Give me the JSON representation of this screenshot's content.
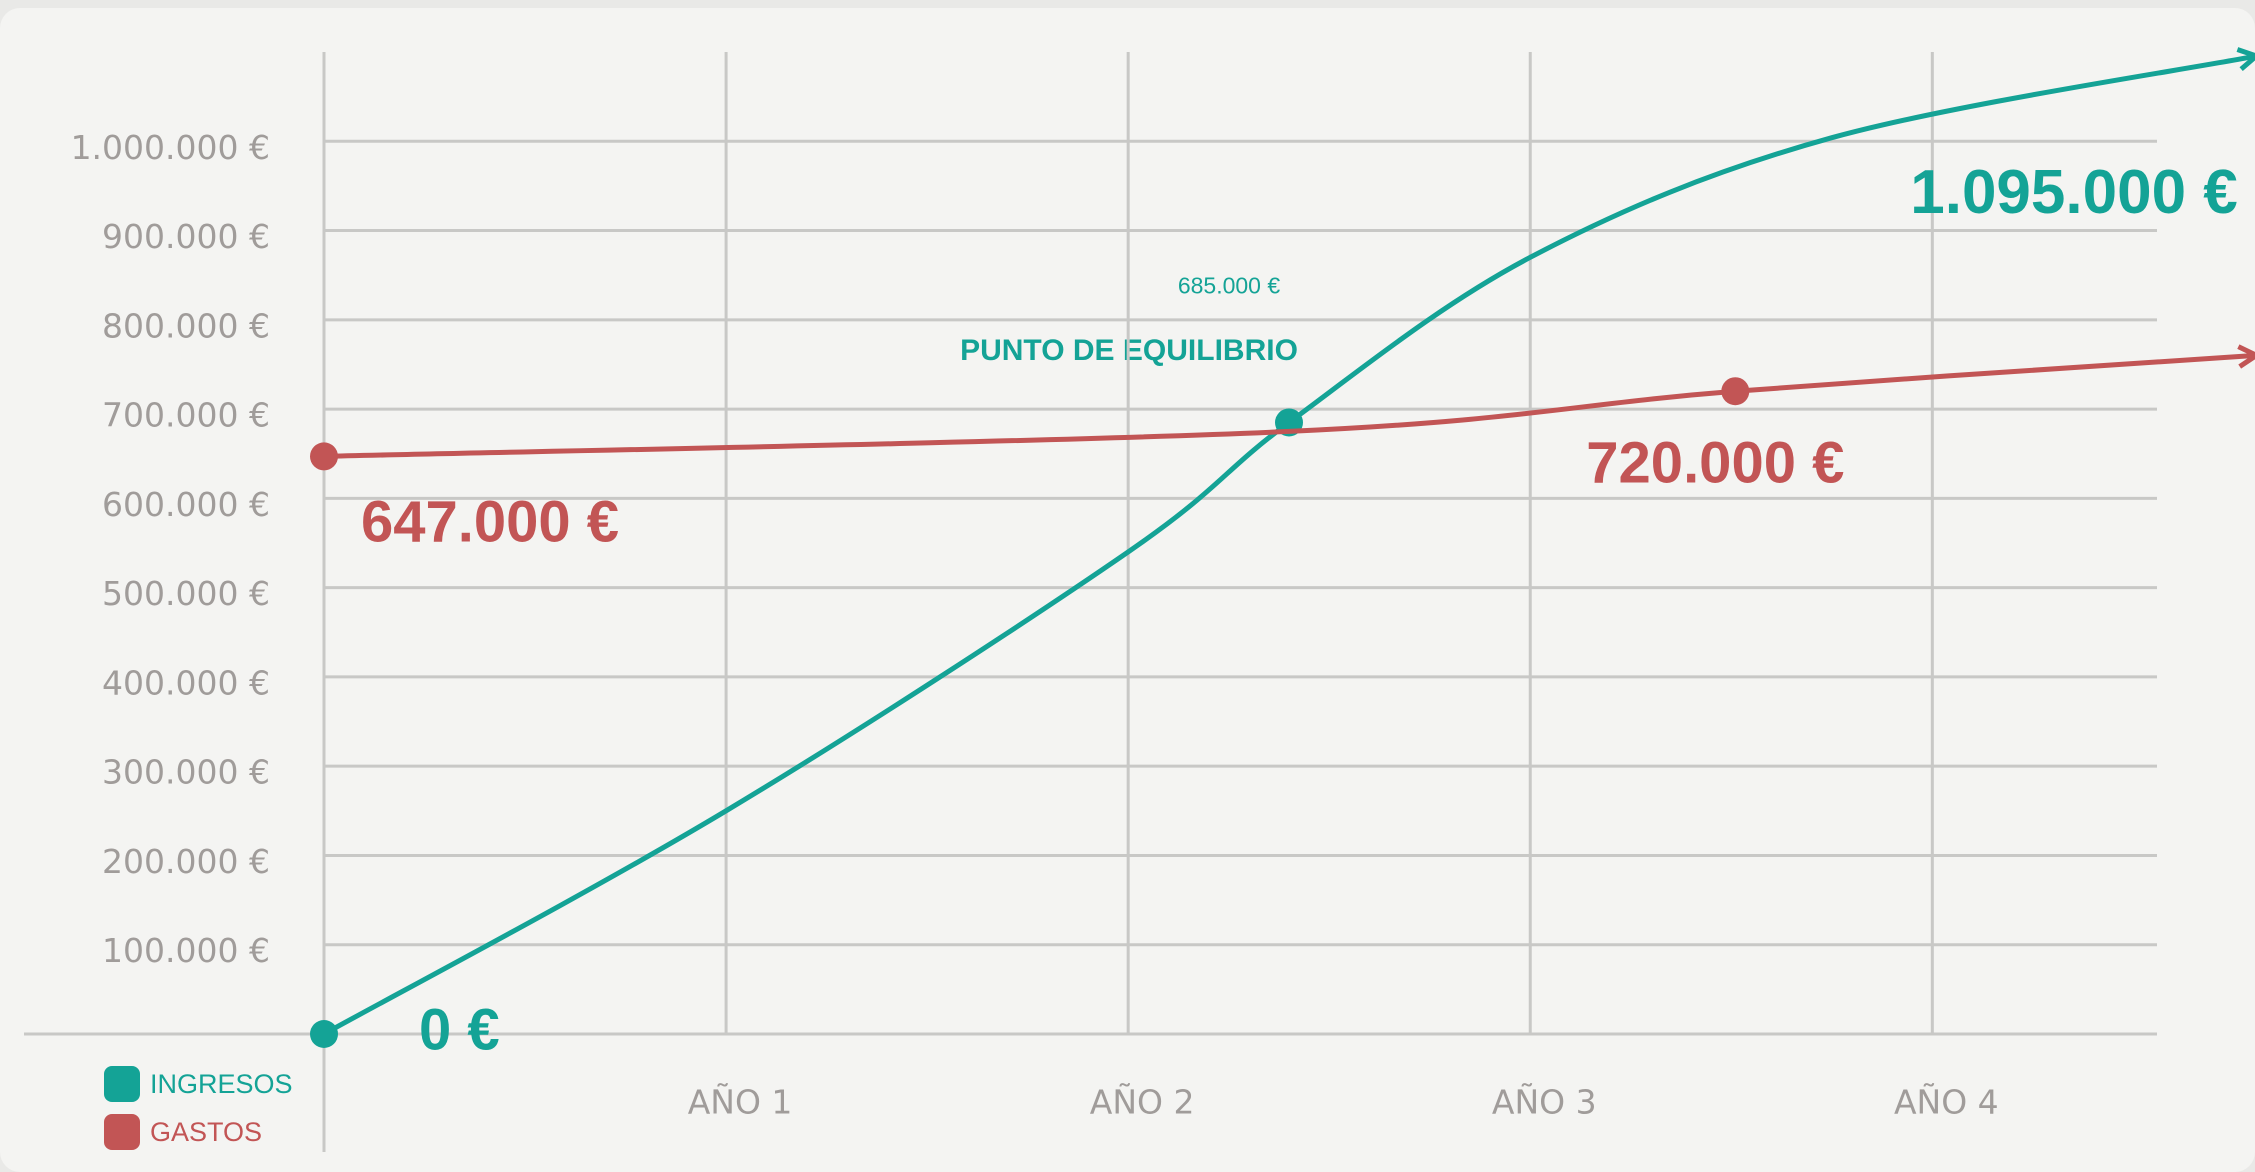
{
  "chart_data": {
    "type": "line",
    "annotations": [
      "PUNTO DE EQUILIBRIO"
    ],
    "xlim": [
      0,
      4.8
    ],
    "xticks": [
      {
        "value": 1,
        "label": "AÑO 1"
      },
      {
        "value": 2,
        "label": "AÑO 2"
      },
      {
        "value": 3,
        "label": "AÑO 3"
      },
      {
        "value": 4,
        "label": "AÑO 4"
      }
    ],
    "ylim": [
      0,
      1100000
    ],
    "yticks": [
      {
        "value": 100000,
        "label": "100.000 €"
      },
      {
        "value": 200000,
        "label": "200.000 €"
      },
      {
        "value": 300000,
        "label": "300.000 €"
      },
      {
        "value": 400000,
        "label": "400.000 €"
      },
      {
        "value": 500000,
        "label": "500.000 €"
      },
      {
        "value": 600000,
        "label": "600.000 €"
      },
      {
        "value": 700000,
        "label": "700.000 €"
      },
      {
        "value": 800000,
        "label": "800.000 €"
      },
      {
        "value": 900000,
        "label": "900.000 €"
      },
      {
        "value": 1000000,
        "label": "1.000.000 €"
      }
    ],
    "grid": true,
    "legend": "bottom-left",
    "series": [
      {
        "name": "INGRESOS",
        "color": "#14a396",
        "x": [
          0,
          1,
          2,
          2.4,
          3,
          3.75,
          4.8
        ],
        "values": [
          0,
          250000,
          540000,
          685000,
          870000,
          1004000,
          1095000
        ],
        "value_labels": [
          "0 €",
          null,
          null,
          "685.000 €",
          null,
          null,
          "1.095.000 €"
        ]
      },
      {
        "name": "GASTOS",
        "color": "#c25555",
        "x": [
          0,
          2.4,
          3.51,
          4.8
        ],
        "values": [
          647000,
          675000,
          720000,
          760000
        ],
        "value_labels": [
          "647.000 €",
          null,
          "720.000 €",
          null
        ]
      }
    ]
  }
}
